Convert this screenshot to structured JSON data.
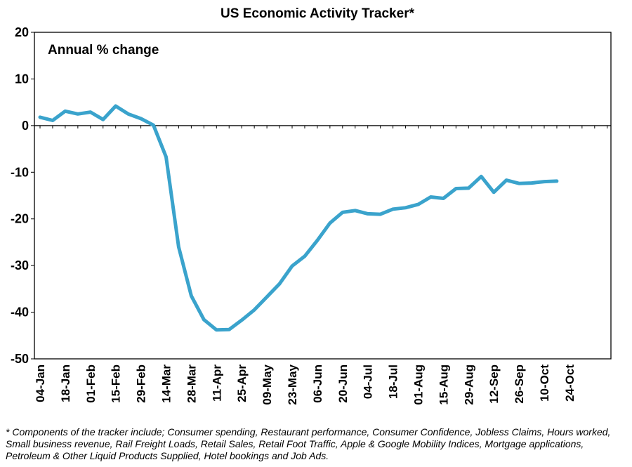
{
  "chart_data": {
    "type": "line",
    "title": "US Economic Activity Tracker*",
    "annotation": "Annual % change",
    "xlabel": "",
    "ylabel": "",
    "ylim": [
      -50,
      20
    ],
    "y_ticks": [
      "20",
      "10",
      "0",
      "-10",
      "-20",
      "-30",
      "-40",
      "-50"
    ],
    "x_tick_labels": [
      "04-Jan",
      "18-Jan",
      "01-Feb",
      "15-Feb",
      "29-Feb",
      "14-Mar",
      "28-Mar",
      "11-Apr",
      "25-Apr",
      "09-May",
      "23-May",
      "06-Jun",
      "20-Jun",
      "04-Jul",
      "18-Jul",
      "01-Aug",
      "15-Aug",
      "29-Aug",
      "12-Sep",
      "26-Sep",
      "10-Oct",
      "24-Oct"
    ],
    "grid": false,
    "line_color": "#3aa3cc",
    "x": [
      "04-Jan",
      "11-Jan",
      "18-Jan",
      "25-Jan",
      "01-Feb",
      "08-Feb",
      "15-Feb",
      "22-Feb",
      "29-Feb",
      "07-Mar",
      "14-Mar",
      "21-Mar",
      "28-Mar",
      "04-Apr",
      "11-Apr",
      "18-Apr",
      "25-Apr",
      "02-May",
      "09-May",
      "16-May",
      "23-May",
      "30-May",
      "06-Jun",
      "13-Jun",
      "20-Jun",
      "27-Jun",
      "04-Jul",
      "11-Jul",
      "18-Jul",
      "25-Jul",
      "01-Aug",
      "08-Aug",
      "15-Aug",
      "22-Aug",
      "29-Aug",
      "05-Sep",
      "12-Sep",
      "19-Sep",
      "26-Sep",
      "03-Oct",
      "10-Oct",
      "17-Oct"
    ],
    "series": [
      {
        "values": [
          1.8,
          1.1,
          3.1,
          2.5,
          2.9,
          1.3,
          4.2,
          2.5,
          1.5,
          0.1,
          -6.7,
          -26,
          -36.5,
          -41.6,
          -43.8,
          -43.7,
          -41.7,
          -39.5,
          -36.7,
          -33.9,
          -30.1,
          -28.0,
          -24.6,
          -20.9,
          -18.6,
          -18.2,
          -18.9,
          -19.0,
          -17.9,
          -17.6,
          -16.9,
          -15.3,
          -15.6,
          -13.5,
          -13.4,
          -10.9,
          -14.3,
          -11.7,
          -12.4,
          -12.3,
          -12.0,
          -11.9
        ]
      }
    ]
  },
  "footnote": "* Components of the tracker include; Consumer spending, Restaurant performance, Consumer Confidence, Jobless Claims, Hours worked, Small business revenue, Rail Freight Loads, Retail Sales, Retail Foot Traffic, Apple & Google Mobility Indices, Mortgage applications, Petroleum & Other Liquid Products Supplied, Hotel bookings and Job Ads."
}
